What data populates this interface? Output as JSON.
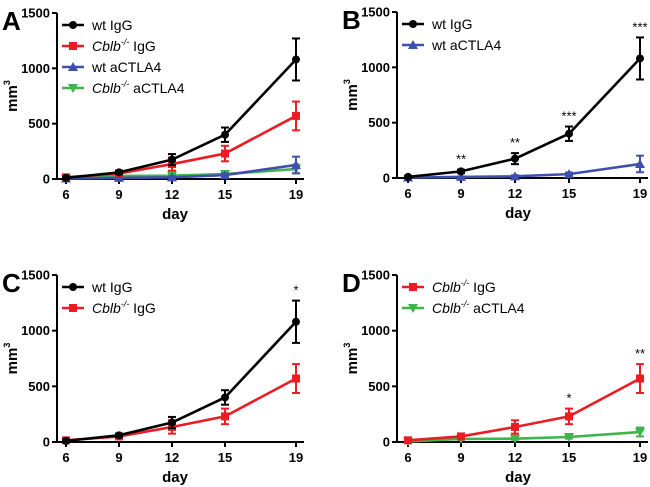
{
  "chart_data": [
    {
      "type": "line",
      "panel": "A",
      "xlabel": "day",
      "ylabel": "mm",
      "ylabel_superscript": "3",
      "x": [
        6,
        9,
        12,
        15,
        19
      ],
      "xticks": [
        "6",
        "9",
        "12",
        "15",
        "19"
      ],
      "yticks": [
        "0",
        "500",
        "1000",
        "1500"
      ],
      "ylim": [
        0,
        1500
      ],
      "legend_position": "top-left",
      "series": [
        {
          "name": "wt IgG",
          "name_italic": "",
          "name_sup": "",
          "name_rest": "wt IgG",
          "color": "#000000",
          "marker": "circle",
          "values": [
            10,
            60,
            175,
            400,
            1080
          ],
          "errors": [
            10,
            15,
            50,
            65,
            190
          ]
        },
        {
          "name": "Cblb-/- IgG",
          "name_italic": "Cblb",
          "name_sup": "-/-",
          "name_rest": " IgG",
          "color": "#ED1C24",
          "marker": "square",
          "values": [
            15,
            50,
            135,
            230,
            570
          ],
          "errors": [
            15,
            15,
            60,
            70,
            130
          ]
        },
        {
          "name": "wt aCTLA4",
          "name_italic": "",
          "name_sup": "",
          "name_rest": "wt aCTLA4",
          "color": "#3F4FAF",
          "marker": "triangle-up",
          "values": [
            5,
            10,
            15,
            35,
            127
          ],
          "errors": [
            5,
            5,
            10,
            15,
            75
          ]
        },
        {
          "name": "Cblb-/- aCTLA4",
          "name_italic": "Cblb",
          "name_sup": "-/-",
          "name_rest": " aCTLA4",
          "color": "#3DB54A",
          "marker": "triangle-down",
          "values": [
            5,
            27,
            30,
            45,
            90
          ],
          "errors": [
            5,
            8,
            10,
            15,
            40
          ]
        }
      ],
      "annotations": []
    },
    {
      "type": "line",
      "panel": "B",
      "xlabel": "day",
      "ylabel": "mm",
      "ylabel_superscript": "3",
      "x": [
        6,
        9,
        12,
        15,
        19
      ],
      "xticks": [
        "6",
        "9",
        "12",
        "15",
        "19"
      ],
      "yticks": [
        "0",
        "500",
        "1000",
        "1500"
      ],
      "ylim": [
        0,
        1500
      ],
      "legend_position": "top-left",
      "series": [
        {
          "name": "wt IgG",
          "name_italic": "",
          "name_sup": "",
          "name_rest": "wt IgG",
          "color": "#000000",
          "marker": "circle",
          "values": [
            10,
            60,
            175,
            400,
            1080
          ],
          "errors": [
            10,
            15,
            50,
            65,
            190
          ]
        },
        {
          "name": "wt aCTLA4",
          "name_italic": "",
          "name_sup": "",
          "name_rest": "wt aCTLA4",
          "color": "#3F4FAF",
          "marker": "triangle-up",
          "values": [
            5,
            10,
            15,
            35,
            127
          ],
          "errors": [
            5,
            5,
            10,
            15,
            75
          ]
        }
      ],
      "annotations": [
        {
          "x": 9,
          "text": "**"
        },
        {
          "x": 12,
          "text": "**"
        },
        {
          "x": 15,
          "text": "***"
        },
        {
          "x": 19,
          "text": "***"
        }
      ]
    },
    {
      "type": "line",
      "panel": "C",
      "xlabel": "day",
      "ylabel": "mm",
      "ylabel_superscript": "3",
      "x": [
        6,
        9,
        12,
        15,
        19
      ],
      "xticks": [
        "6",
        "9",
        "12",
        "15",
        "19"
      ],
      "yticks": [
        "0",
        "500",
        "1000",
        "1500"
      ],
      "ylim": [
        0,
        1500
      ],
      "legend_position": "top-left",
      "series": [
        {
          "name": "wt IgG",
          "name_italic": "",
          "name_sup": "",
          "name_rest": "wt IgG",
          "color": "#000000",
          "marker": "circle",
          "values": [
            10,
            60,
            175,
            400,
            1080
          ],
          "errors": [
            10,
            15,
            50,
            65,
            190
          ]
        },
        {
          "name": "Cblb-/- IgG",
          "name_italic": "Cblb",
          "name_sup": "-/-",
          "name_rest": " IgG",
          "color": "#ED1C24",
          "marker": "square",
          "values": [
            15,
            50,
            135,
            230,
            570
          ],
          "errors": [
            15,
            15,
            60,
            70,
            130
          ]
        }
      ],
      "annotations": [
        {
          "x": 19,
          "text": "*"
        }
      ]
    },
    {
      "type": "line",
      "panel": "D",
      "xlabel": "day",
      "ylabel": "mm",
      "ylabel_superscript": "3",
      "x": [
        6,
        9,
        12,
        15,
        19
      ],
      "xticks": [
        "6",
        "9",
        "12",
        "15",
        "19"
      ],
      "yticks": [
        "0",
        "500",
        "1000",
        "1500"
      ],
      "ylim": [
        0,
        1500
      ],
      "legend_position": "top-left",
      "series": [
        {
          "name": "Cblb-/- IgG",
          "name_italic": "Cblb",
          "name_sup": "-/-",
          "name_rest": " IgG",
          "color": "#ED1C24",
          "marker": "square",
          "values": [
            15,
            50,
            135,
            230,
            570
          ],
          "errors": [
            15,
            15,
            60,
            70,
            130
          ]
        },
        {
          "name": "Cblb-/- aCTLA4",
          "name_italic": "Cblb",
          "name_sup": "-/-",
          "name_rest": " aCTLA4",
          "color": "#3DB54A",
          "marker": "triangle-down",
          "values": [
            5,
            27,
            30,
            45,
            90
          ],
          "errors": [
            5,
            8,
            10,
            15,
            40
          ]
        }
      ],
      "annotations": [
        {
          "x": 15,
          "text": "*"
        },
        {
          "x": 19,
          "text": "**"
        }
      ]
    }
  ]
}
